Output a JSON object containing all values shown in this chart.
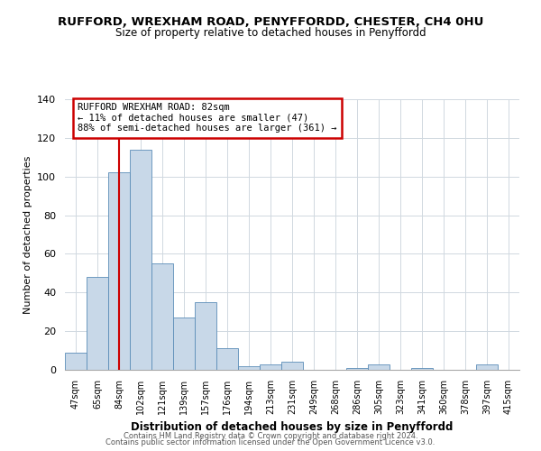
{
  "title": "RUFFORD, WREXHAM ROAD, PENYFFORDD, CHESTER, CH4 0HU",
  "subtitle": "Size of property relative to detached houses in Penyffordd",
  "xlabel": "Distribution of detached houses by size in Penyffordd",
  "ylabel": "Number of detached properties",
  "bar_color": "#c8d8e8",
  "bar_edge_color": "#5b8db8",
  "categories": [
    "47sqm",
    "65sqm",
    "84sqm",
    "102sqm",
    "121sqm",
    "139sqm",
    "157sqm",
    "176sqm",
    "194sqm",
    "213sqm",
    "231sqm",
    "249sqm",
    "268sqm",
    "286sqm",
    "305sqm",
    "323sqm",
    "341sqm",
    "360sqm",
    "378sqm",
    "397sqm",
    "415sqm"
  ],
  "values": [
    9,
    48,
    102,
    114,
    55,
    27,
    35,
    11,
    2,
    3,
    4,
    0,
    0,
    1,
    3,
    0,
    1,
    0,
    0,
    3,
    0
  ],
  "ylim": [
    0,
    140
  ],
  "yticks": [
    0,
    20,
    40,
    60,
    80,
    100,
    120,
    140
  ],
  "vline_x_index": 2,
  "vline_color": "#cc0000",
  "annotation_title": "RUFFORD WREXHAM ROAD: 82sqm",
  "annotation_line1": "← 11% of detached houses are smaller (47)",
  "annotation_line2": "88% of semi-detached houses are larger (361) →",
  "annotation_box_color": "#cc0000",
  "footer_line1": "Contains HM Land Registry data © Crown copyright and database right 2024.",
  "footer_line2": "Contains public sector information licensed under the Open Government Licence v3.0.",
  "background_color": "#ffffff",
  "grid_color": "#d0d8e0"
}
